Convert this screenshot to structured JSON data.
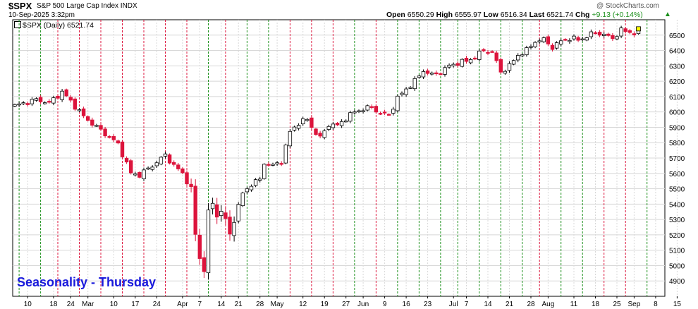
{
  "header": {
    "symbol": "$SPX",
    "description": "S&P 500 Large Cap Index INDX",
    "credit": "@ StockCharts.com",
    "timestamp": "10-Sep-2025 3:32pm",
    "open_label": "Open",
    "open": "6550.29",
    "high_label": "High",
    "high": "6555.97",
    "low_label": "Low",
    "low": "6516.34",
    "last_label": "Last",
    "last": "6521.74",
    "chg_label": "Chg",
    "chg": "+9.13 (+0.14%)"
  },
  "legend": {
    "text": "$SPX (Daily) 6521.74"
  },
  "annotation": {
    "text": "Seasonality - Thursday"
  },
  "colors": {
    "up": "#ffffff",
    "down": "#dc143c",
    "thursday_up_line": "#1a8f1a",
    "thursday_down_line": "#dc143c",
    "grid": "#d8d8d8"
  },
  "chart_data": {
    "type": "candlestick",
    "ylim": [
      4800,
      6600
    ],
    "y_ticks": [
      4900,
      5000,
      5100,
      5200,
      5300,
      5400,
      5500,
      5600,
      5700,
      5800,
      5900,
      6000,
      6100,
      6200,
      6300,
      6400,
      6500
    ],
    "x_tick_labels": [
      {
        "label": "10",
        "day": 3
      },
      {
        "label": "18",
        "day": 9
      },
      {
        "label": "24",
        "day": 13
      },
      {
        "label": "Mar",
        "day": 17
      },
      {
        "label": "10",
        "day": 23
      },
      {
        "label": "17",
        "day": 28
      },
      {
        "label": "24",
        "day": 33
      },
      {
        "label": "Apr",
        "day": 39
      },
      {
        "label": "7",
        "day": 43
      },
      {
        "label": "14",
        "day": 48
      },
      {
        "label": "21",
        "day": 52
      },
      {
        "label": "28",
        "day": 57
      },
      {
        "label": "May",
        "day": 61
      },
      {
        "label": "12",
        "day": 67
      },
      {
        "label": "19",
        "day": 72
      },
      {
        "label": "27",
        "day": 77
      },
      {
        "label": "Jun",
        "day": 81
      },
      {
        "label": "9",
        "day": 86
      },
      {
        "label": "16",
        "day": 91
      },
      {
        "label": "23",
        "day": 96
      },
      {
        "label": "Jul",
        "day": 102
      },
      {
        "label": "7",
        "day": 105
      },
      {
        "label": "14",
        "day": 110
      },
      {
        "label": "21",
        "day": 115
      },
      {
        "label": "28",
        "day": 120
      },
      {
        "label": "Aug",
        "day": 124
      },
      {
        "label": "11",
        "day": 130
      },
      {
        "label": "18",
        "day": 135
      },
      {
        "label": "25",
        "day": 140
      },
      {
        "label": "Sep",
        "day": 144
      },
      {
        "label": "8",
        "day": 149
      },
      {
        "label": "15",
        "day": 154
      }
    ],
    "thursday_lines": [
      {
        "day": 1,
        "up": true
      },
      {
        "day": 6,
        "up": true
      },
      {
        "day": 10,
        "up": false
      },
      {
        "day": 15,
        "up": false
      },
      {
        "day": 20,
        "up": false
      },
      {
        "day": 25,
        "up": false
      },
      {
        "day": 30,
        "up": false
      },
      {
        "day": 35,
        "up": false
      },
      {
        "day": 40,
        "up": false
      },
      {
        "day": 45,
        "up": true
      },
      {
        "day": 49,
        "up": false
      },
      {
        "day": 54,
        "up": true
      },
      {
        "day": 59,
        "up": true
      },
      {
        "day": 64,
        "up": false
      },
      {
        "day": 69,
        "up": false
      },
      {
        "day": 74,
        "up": false
      },
      {
        "day": 79,
        "up": true
      },
      {
        "day": 84,
        "up": false
      },
      {
        "day": 89,
        "up": true
      },
      {
        "day": 94,
        "up": true
      },
      {
        "day": 99,
        "up": true
      },
      {
        "day": 103,
        "up": true
      },
      {
        "day": 108,
        "up": true
      },
      {
        "day": 113,
        "up": true
      },
      {
        "day": 118,
        "up": true
      },
      {
        "day": 122,
        "up": false
      },
      {
        "day": 127,
        "up": true
      },
      {
        "day": 132,
        "up": true
      },
      {
        "day": 137,
        "up": false
      },
      {
        "day": 142,
        "up": false
      },
      {
        "day": 147,
        "up": true
      }
    ],
    "waypoints": [
      [
        0,
        6040
      ],
      [
        5,
        6080
      ],
      [
        8,
        6060
      ],
      [
        11,
        6130
      ],
      [
        13,
        6070
      ],
      [
        16,
        5970
      ],
      [
        20,
        5880
      ],
      [
        24,
        5790
      ],
      [
        27,
        5600
      ],
      [
        29,
        5590
      ],
      [
        32,
        5650
      ],
      [
        35,
        5720
      ],
      [
        37,
        5650
      ],
      [
        39,
        5600
      ],
      [
        41,
        5500
      ],
      [
        42,
        5200
      ],
      [
        43,
        5050
      ],
      [
        44,
        4970
      ],
      [
        45,
        5350
      ],
      [
        46,
        5400
      ],
      [
        47,
        5330
      ],
      [
        48,
        5350
      ],
      [
        49,
        5300
      ],
      [
        50,
        5200
      ],
      [
        51,
        5300
      ],
      [
        53,
        5470
      ],
      [
        55,
        5530
      ],
      [
        57,
        5560
      ],
      [
        58,
        5670
      ],
      [
        60,
        5650
      ],
      [
        62,
        5680
      ],
      [
        64,
        5870
      ],
      [
        66,
        5930
      ],
      [
        68,
        5950
      ],
      [
        70,
        5860
      ],
      [
        71,
        5830
      ],
      [
        73,
        5920
      ],
      [
        75,
        5910
      ],
      [
        77,
        5960
      ],
      [
        79,
        6000
      ],
      [
        81,
        6020
      ],
      [
        83,
        6030
      ],
      [
        85,
        5990
      ],
      [
        87,
        5980
      ],
      [
        89,
        6090
      ],
      [
        91,
        6150
      ],
      [
        93,
        6200
      ],
      [
        95,
        6270
      ],
      [
        97,
        6240
      ],
      [
        99,
        6260
      ],
      [
        101,
        6300
      ],
      [
        103,
        6320
      ],
      [
        105,
        6330
      ],
      [
        107,
        6360
      ],
      [
        109,
        6400
      ],
      [
        111,
        6390
      ],
      [
        113,
        6260
      ],
      [
        115,
        6300
      ],
      [
        117,
        6370
      ],
      [
        119,
        6400
      ],
      [
        121,
        6460
      ],
      [
        123,
        6470
      ],
      [
        125,
        6420
      ],
      [
        127,
        6460
      ],
      [
        129,
        6480
      ],
      [
        131,
        6470
      ],
      [
        133,
        6490
      ],
      [
        135,
        6520
      ],
      [
        137,
        6500
      ],
      [
        139,
        6480
      ],
      [
        141,
        6530
      ],
      [
        143,
        6520
      ],
      [
        144,
        6512
      ],
      [
        145,
        6522
      ]
    ]
  }
}
